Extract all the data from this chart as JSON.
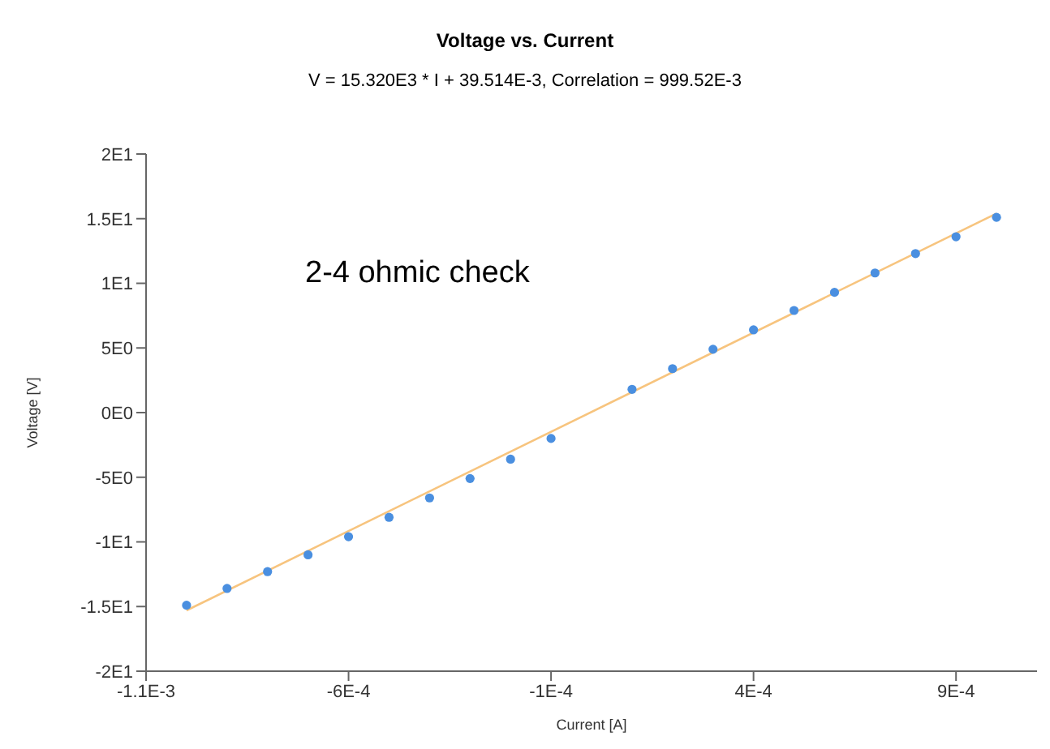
{
  "chart_data": {
    "type": "scatter",
    "title": "Voltage vs. Current",
    "subtitle": "V = 15.320E3 * I + 39.514E-3, Correlation = 999.52E-3",
    "xlabel": "Current [A]",
    "ylabel": "Voltage [V]",
    "annotations": [
      "2-4 ohmic check"
    ],
    "xlim": [
      -0.0011,
      0.0011
    ],
    "ylim": [
      -20,
      20
    ],
    "xticks": [
      {
        "value": -0.0011,
        "label": "-1.1E-3"
      },
      {
        "value": -0.0006,
        "label": "-6E-4"
      },
      {
        "value": -0.0001,
        "label": "-1E-4"
      },
      {
        "value": 0.0004,
        "label": "4E-4"
      },
      {
        "value": 0.0009,
        "label": "9E-4"
      }
    ],
    "yticks": [
      {
        "value": -20,
        "label": "-2E1"
      },
      {
        "value": -15,
        "label": "-1.5E1"
      },
      {
        "value": -10,
        "label": "-1E1"
      },
      {
        "value": -5,
        "label": "-5E0"
      },
      {
        "value": 0,
        "label": "0E0"
      },
      {
        "value": 5,
        "label": "5E0"
      },
      {
        "value": 10,
        "label": "1E1"
      },
      {
        "value": 15,
        "label": "1.5E1"
      },
      {
        "value": 20,
        "label": "2E1"
      }
    ],
    "grid": false,
    "series": [
      {
        "type": "line",
        "color": "#f7c47e",
        "marker": "none",
        "line_style": "solid",
        "x": [
          -0.001,
          0.001
        ],
        "values": [
          -15.3,
          15.4
        ]
      },
      {
        "color": "#4a8fe0",
        "marker": "circle",
        "x": [
          -0.001,
          -0.0009,
          -0.0008,
          -0.0007,
          -0.0006,
          -0.0005,
          -0.0004,
          -0.0003,
          -0.0002,
          -0.0001,
          0.0001,
          0.0002,
          0.0003,
          0.0004,
          0.0005,
          0.0006,
          0.0007,
          0.0008,
          0.0009,
          0.001
        ],
        "values": [
          -14.9,
          -13.6,
          -12.3,
          -11,
          -9.6,
          -8.1,
          -6.6,
          -5.1,
          -3.6,
          -2,
          1.8,
          3.4,
          4.9,
          6.4,
          7.9,
          9.3,
          10.8,
          12.3,
          13.6,
          15.1
        ]
      }
    ]
  }
}
